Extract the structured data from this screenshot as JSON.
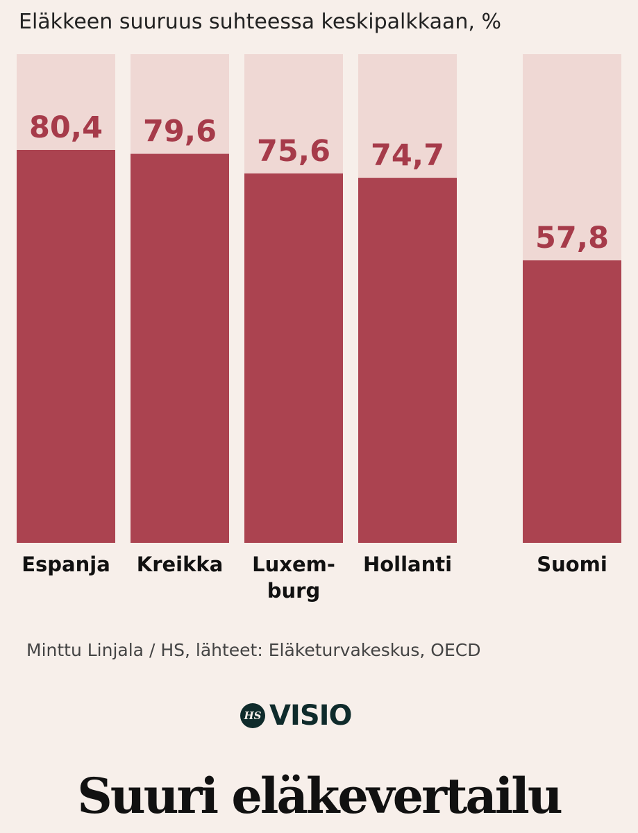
{
  "header": {
    "subtitle": "Eläkkeen suuruus suhteessa keskipalkkaan, %"
  },
  "chart_data": {
    "type": "bar",
    "title": "Suuri eläkevertailu",
    "subtitle": "Eläkkeen suuruus suhteessa keskipalkkaan, %",
    "categories": [
      "Espanja",
      "Kreikka",
      "Luxem-\nburg",
      "Hollanti",
      "Suomi"
    ],
    "values": [
      80.4,
      79.6,
      75.6,
      74.7,
      57.8
    ],
    "value_labels": [
      "80,4",
      "79,6",
      "75,6",
      "74,7",
      "57,8"
    ],
    "ylim": [
      0,
      100
    ],
    "grid": false,
    "legend": "none",
    "colors": {
      "bar": "#ab4350",
      "track": "#efd8d4",
      "value_text": "#a63b4a"
    }
  },
  "footer": {
    "source": "Minttu Linjala / HS, lähteet: Eläketurvakeskus, OECD",
    "logo_badge": "HS",
    "logo_word": "VISIO",
    "headline": "Suuri eläkevertailu"
  }
}
